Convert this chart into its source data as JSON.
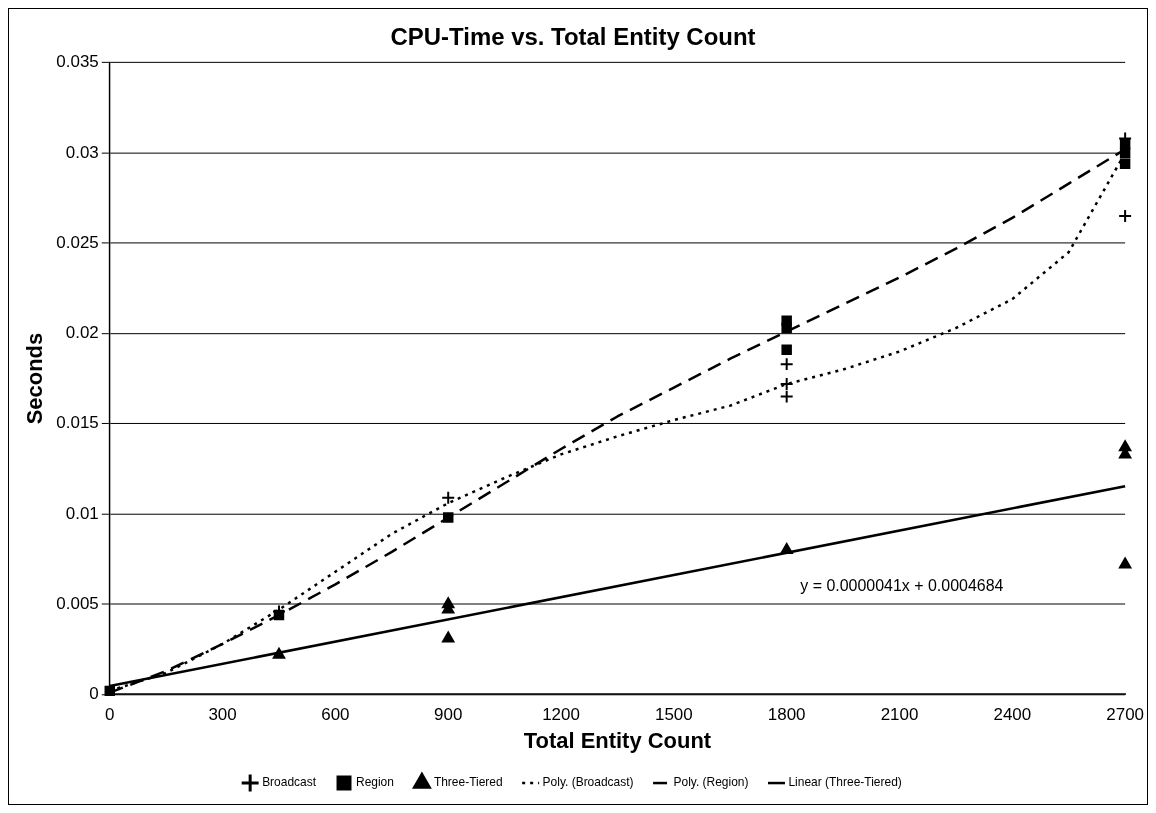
{
  "chart_data": {
    "type": "scatter",
    "title": "CPU-Time vs. Total Entity Count",
    "xlabel": "Total Entity Count",
    "ylabel": "Seconds",
    "xlim": [
      0,
      2700
    ],
    "xticks": [
      0,
      300,
      600,
      900,
      1200,
      1500,
      1800,
      2100,
      2400,
      2700
    ],
    "ylim": [
      0,
      0.035
    ],
    "yticks": [
      0,
      0.005,
      0.01,
      0.015,
      0.02,
      0.025,
      0.03,
      0.035
    ],
    "grid": "y",
    "legend": "bottom",
    "annotations": [
      "y = 0.0000041x + 0.0004684"
    ],
    "series": [
      {
        "name": "Broadcast",
        "type": "scatter",
        "marker": "cross",
        "color": "#000000",
        "x": [
          450,
          900,
          1800,
          1800,
          1800,
          2700,
          2700
        ],
        "values": [
          0.0046,
          0.0109,
          0.0183,
          0.0172,
          0.0165,
          0.0308,
          0.0265
        ]
      },
      {
        "name": "Region",
        "type": "scatter",
        "marker": "square",
        "color": "#000000",
        "x": [
          0,
          450,
          900,
          1800,
          1800,
          1800,
          2700,
          2700,
          2700
        ],
        "values": [
          0.0002,
          0.0044,
          0.0098,
          0.0207,
          0.0203,
          0.0191,
          0.0305,
          0.03,
          0.0294
        ]
      },
      {
        "name": "Three-Tiered",
        "type": "scatter",
        "marker": "triangle",
        "color": "#000000",
        "x": [
          450,
          900,
          900,
          900,
          1800,
          2700,
          2700,
          2700
        ],
        "values": [
          0.0022,
          0.005,
          0.0047,
          0.0031,
          0.008,
          0.0137,
          0.0133,
          0.0072
        ]
      },
      {
        "name": "Poly. (Broadcast)",
        "type": "line",
        "marker": "none",
        "line_style": "dotted",
        "color": "#000000",
        "x": [
          0,
          150,
          300,
          450,
          600,
          750,
          900,
          1050,
          1200,
          1350,
          1500,
          1650,
          1800,
          1950,
          2100,
          2250,
          2400,
          2550,
          2700
        ],
        "values": [
          0.0002,
          0.0012,
          0.0028,
          0.0047,
          0.0068,
          0.0089,
          0.0106,
          0.012,
          0.0133,
          0.0143,
          0.0152,
          0.016,
          0.0172,
          0.018,
          0.019,
          0.0203,
          0.0219,
          0.0245,
          0.03
        ]
      },
      {
        "name": "Poly. (Region)",
        "type": "line",
        "marker": "none",
        "line_style": "dashed",
        "color": "#000000",
        "x": [
          0,
          150,
          300,
          450,
          600,
          750,
          900,
          1050,
          1200,
          1350,
          1500,
          1650,
          1800,
          1950,
          2100,
          2250,
          2400,
          2550,
          2700
        ],
        "values": [
          0.0001,
          0.0013,
          0.0028,
          0.0044,
          0.0061,
          0.0079,
          0.0098,
          0.0117,
          0.0136,
          0.0154,
          0.017,
          0.0186,
          0.0201,
          0.0216,
          0.0231,
          0.0247,
          0.0264,
          0.0283,
          0.0302
        ]
      },
      {
        "name": "Linear (Three-Tiered)",
        "type": "line",
        "marker": "none",
        "line_style": "solid",
        "color": "#000000",
        "x": [
          0,
          2700
        ],
        "values": [
          0.00047,
          0.01154
        ]
      }
    ]
  }
}
